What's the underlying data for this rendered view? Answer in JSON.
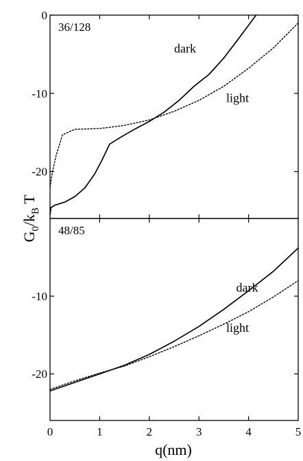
{
  "chart_data": {
    "type": "line",
    "xlabel": "q(nm)",
    "ylabel": "G₀/k_B T",
    "ylabel_main": "G",
    "ylabel_sub0": "0",
    "ylabel_mid": "/k",
    "ylabel_subB": "B",
    "ylabel_end": " T",
    "x_ticks": [
      "0",
      "1",
      "2",
      "3",
      "4",
      "5"
    ],
    "xlim": [
      0,
      5
    ],
    "panels": [
      {
        "label": "36/128",
        "ylim": [
          -26,
          0
        ],
        "y_ticks": [
          {
            "value": 0,
            "label": "0"
          },
          {
            "value": -10,
            "label": "-10"
          },
          {
            "value": -20,
            "label": "-20"
          }
        ],
        "series": [
          {
            "name": "dark",
            "style": "solid",
            "x": [
              0,
              0.02,
              0.1,
              0.3,
              0.5,
              0.7,
              0.9,
              1.05,
              1.2,
              1.4,
              1.7,
              2.0,
              2.3,
              2.6,
              2.9,
              3.2,
              3.5,
              3.8,
              4.0,
              4.15
            ],
            "y": [
              -25.5,
              -24.6,
              -24.3,
              -23.9,
              -23.2,
              -22.1,
              -20.3,
              -18.5,
              -16.5,
              -15.7,
              -14.6,
              -13.6,
              -12.4,
              -10.9,
              -9.1,
              -7.6,
              -5.5,
              -3.0,
              -1.3,
              0
            ]
          },
          {
            "name": "light",
            "style": "dashed",
            "x": [
              0,
              0.05,
              0.12,
              0.25,
              0.5,
              1.0,
              1.5,
              2.0,
              2.5,
              3.0,
              3.5,
              4.0,
              4.5,
              5.0
            ],
            "y": [
              -22.0,
              -20.0,
              -18.0,
              -15.3,
              -14.6,
              -14.5,
              -14.1,
              -13.4,
              -12.3,
              -10.9,
              -9.1,
              -6.8,
              -4.2,
              -1.0
            ]
          }
        ],
        "annotations": [
          {
            "text": "dark",
            "x": 2.5,
            "y": -4.8
          },
          {
            "text": "light",
            "x": 3.55,
            "y": -11.1
          }
        ]
      },
      {
        "label": "48/85",
        "ylim": [
          -26,
          0
        ],
        "y_ticks": [
          {
            "value": -10,
            "label": "-10"
          },
          {
            "value": -20,
            "label": "-20"
          }
        ],
        "series": [
          {
            "name": "dark",
            "style": "solid",
            "x": [
              0,
              0.5,
              1.0,
              1.5,
              2.0,
              2.5,
              3.0,
              3.5,
              4.0,
              4.5,
              5.0
            ],
            "y": [
              -22.2,
              -21.1,
              -20.0,
              -18.9,
              -17.5,
              -15.8,
              -13.9,
              -11.7,
              -9.3,
              -6.8,
              -3.8
            ]
          },
          {
            "name": "light",
            "style": "dashed",
            "x": [
              0,
              0.5,
              1.0,
              1.5,
              2.0,
              2.5,
              3.0,
              3.5,
              4.0,
              4.5,
              5.0
            ],
            "y": [
              -22.0,
              -20.9,
              -19.9,
              -19.0,
              -17.8,
              -16.5,
              -15.1,
              -13.6,
              -12.0,
              -10.1,
              -8.0
            ]
          }
        ],
        "annotations": [
          {
            "text": "dark",
            "x": 3.75,
            "y": -9.4
          },
          {
            "text": "light",
            "x": 3.55,
            "y": -14.6
          }
        ]
      }
    ]
  }
}
